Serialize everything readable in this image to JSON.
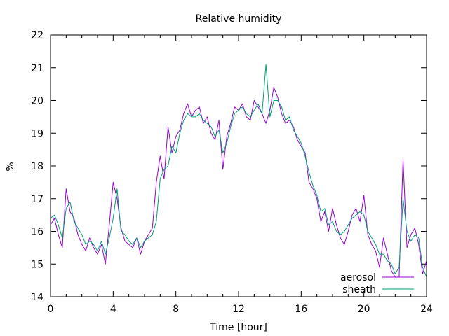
{
  "chart_data": {
    "type": "line",
    "title": "Relative humidity",
    "xlabel": "Time [hour]",
    "ylabel": "%",
    "xlim": [
      0,
      24
    ],
    "ylim": [
      14,
      22
    ],
    "xticks": [
      0,
      4,
      8,
      12,
      16,
      20,
      24
    ],
    "yticks": [
      14,
      15,
      16,
      17,
      18,
      19,
      20,
      21,
      22
    ],
    "grid": false,
    "legend_position": "bottom-right",
    "series": [
      {
        "name": "aerosol",
        "color": "#9400d3",
        "x": [
          0,
          0.25,
          0.5,
          0.75,
          1,
          1.25,
          1.5,
          1.75,
          2,
          2.25,
          2.5,
          2.75,
          3,
          3.25,
          3.5,
          3.75,
          4,
          4.25,
          4.5,
          4.75,
          5,
          5.25,
          5.5,
          5.75,
          6,
          6.25,
          6.5,
          6.75,
          7,
          7.25,
          7.5,
          7.75,
          8,
          8.25,
          8.5,
          8.75,
          9,
          9.25,
          9.5,
          9.75,
          10,
          10.25,
          10.5,
          10.75,
          11,
          11.25,
          11.5,
          11.75,
          12,
          12.25,
          12.5,
          12.75,
          13,
          13.25,
          13.5,
          13.75,
          14,
          14.25,
          14.5,
          14.75,
          15,
          15.25,
          15.5,
          15.75,
          16,
          16.25,
          16.5,
          16.75,
          17,
          17.25,
          17.5,
          17.75,
          18,
          18.25,
          18.5,
          18.75,
          19,
          19.25,
          19.5,
          19.75,
          20,
          20.25,
          20.5,
          20.75,
          21,
          21.25,
          21.5,
          21.75,
          22,
          22.25,
          22.5,
          22.75,
          23,
          23.25,
          23.5,
          23.75,
          24
        ],
        "values": [
          16.2,
          16.4,
          15.9,
          15.5,
          17.3,
          16.6,
          16.4,
          15.9,
          15.6,
          15.4,
          15.8,
          15.5,
          15.3,
          15.6,
          15.0,
          16.2,
          17.5,
          17.0,
          16.1,
          15.7,
          15.6,
          15.5,
          15.8,
          15.3,
          15.7,
          15.9,
          16.1,
          17.5,
          18.3,
          17.6,
          19.2,
          18.4,
          18.9,
          19.1,
          19.6,
          19.9,
          19.5,
          19.7,
          19.8,
          19.3,
          19.5,
          19.0,
          18.8,
          19.4,
          17.9,
          18.9,
          19.3,
          19.8,
          19.7,
          19.9,
          19.5,
          19.4,
          20.0,
          19.8,
          19.6,
          19.3,
          19.7,
          20.4,
          20.1,
          19.6,
          19.3,
          19.4,
          19.2,
          18.8,
          18.6,
          18.4,
          17.5,
          17.3,
          17.0,
          16.3,
          16.6,
          16.0,
          16.7,
          16.2,
          15.8,
          15.6,
          16.0,
          16.5,
          16.7,
          16.3,
          17.1,
          15.9,
          15.6,
          15.4,
          14.9,
          15.8,
          15.3,
          14.8,
          14.6,
          14.6,
          18.2,
          15.5,
          15.9,
          16.1,
          15.6,
          14.7,
          15.1
        ]
      },
      {
        "name": "sheath",
        "color": "#009e73",
        "x": [
          0,
          0.25,
          0.5,
          0.75,
          1,
          1.25,
          1.5,
          1.75,
          2,
          2.25,
          2.5,
          2.75,
          3,
          3.25,
          3.5,
          3.75,
          4,
          4.25,
          4.5,
          4.75,
          5,
          5.25,
          5.5,
          5.75,
          6,
          6.25,
          6.5,
          6.75,
          7,
          7.25,
          7.5,
          7.75,
          8,
          8.25,
          8.5,
          8.75,
          9,
          9.25,
          9.5,
          9.75,
          10,
          10.25,
          10.5,
          10.75,
          11,
          11.25,
          11.5,
          11.75,
          12,
          12.25,
          12.5,
          12.75,
          13,
          13.25,
          13.5,
          13.75,
          14,
          14.25,
          14.5,
          14.75,
          15,
          15.25,
          15.5,
          15.75,
          16,
          16.25,
          16.5,
          16.75,
          17,
          17.25,
          17.5,
          17.75,
          18,
          18.25,
          18.5,
          18.75,
          19,
          19.25,
          19.5,
          19.75,
          20,
          20.25,
          20.5,
          20.75,
          21,
          21.25,
          21.5,
          21.75,
          22,
          22.25,
          22.5,
          22.75,
          23,
          23.25,
          23.5,
          23.75,
          24
        ],
        "values": [
          16.4,
          16.5,
          16.2,
          15.8,
          16.7,
          16.9,
          16.3,
          16.1,
          15.9,
          15.6,
          15.7,
          15.6,
          15.4,
          15.7,
          15.3,
          15.8,
          16.4,
          17.3,
          16.0,
          15.9,
          15.7,
          15.6,
          15.8,
          15.5,
          15.7,
          15.8,
          15.9,
          16.3,
          17.6,
          17.9,
          18.0,
          18.6,
          18.4,
          19.0,
          19.4,
          19.6,
          19.5,
          19.5,
          19.6,
          19.4,
          19.3,
          19.2,
          18.9,
          19.1,
          18.4,
          18.7,
          19.2,
          19.6,
          19.7,
          19.8,
          19.6,
          19.5,
          19.7,
          19.9,
          19.6,
          21.1,
          19.5,
          20.0,
          20.0,
          19.8,
          19.4,
          19.5,
          19.1,
          18.9,
          18.7,
          18.3,
          17.8,
          17.4,
          17.1,
          16.6,
          16.7,
          16.2,
          16.3,
          16.0,
          15.9,
          16.0,
          16.2,
          16.4,
          16.5,
          16.6,
          16.5,
          16.0,
          15.8,
          15.6,
          15.3,
          15.3,
          15.1,
          15.0,
          14.7,
          14.9,
          17.0,
          16.0,
          15.7,
          15.9,
          15.8,
          14.9,
          14.6
        ]
      }
    ]
  }
}
